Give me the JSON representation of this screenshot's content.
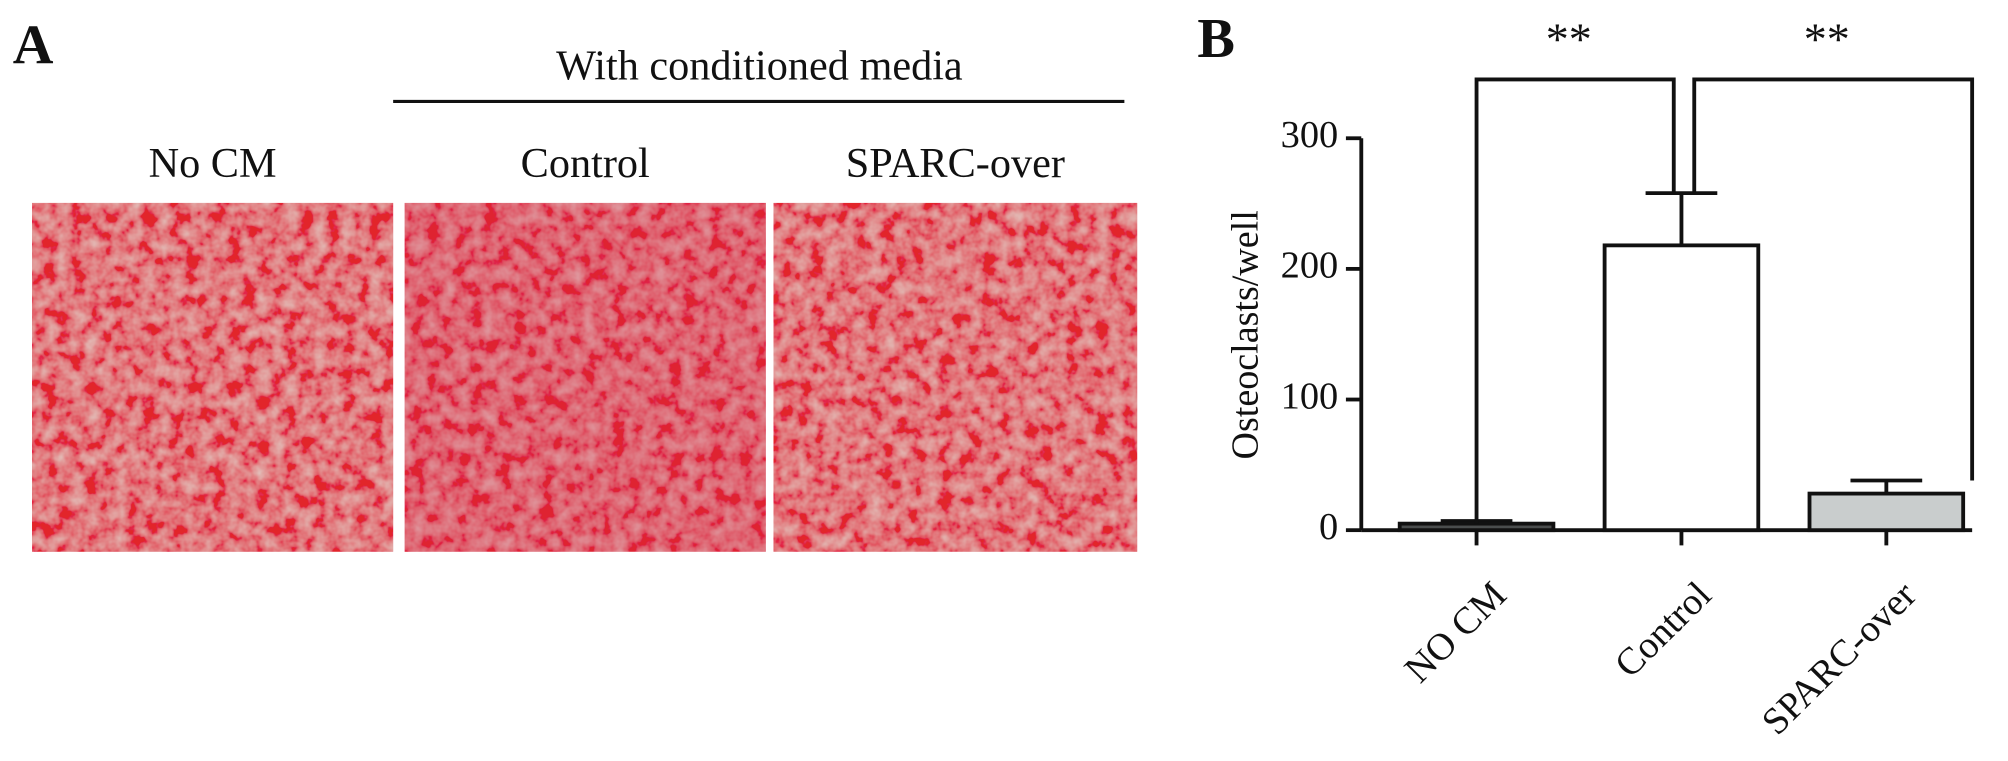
{
  "panel_a": {
    "label": "A",
    "group_title": "With conditioned media",
    "images": [
      "No    CM",
      "Control",
      "SPARC-over"
    ]
  },
  "chart_data": {
    "type": "bar",
    "panel_label": "B",
    "y_label": "Osteoclasts/well",
    "categories": [
      "NO CM",
      "Control",
      "SPARC-over"
    ],
    "values": [
      5,
      218,
      28
    ],
    "errors": [
      2,
      40,
      10
    ],
    "colors": [
      "#4a4d4d",
      "#ffffff",
      "#c9cdcd"
    ],
    "ylim": [
      0,
      300
    ],
    "yticks": [
      0,
      100,
      200,
      300
    ],
    "annotations": [
      {
        "text": "**",
        "from": 0,
        "to": 1,
        "y": 345
      },
      {
        "text": "**",
        "from": 1,
        "to": 2,
        "y": 345
      }
    ]
  }
}
